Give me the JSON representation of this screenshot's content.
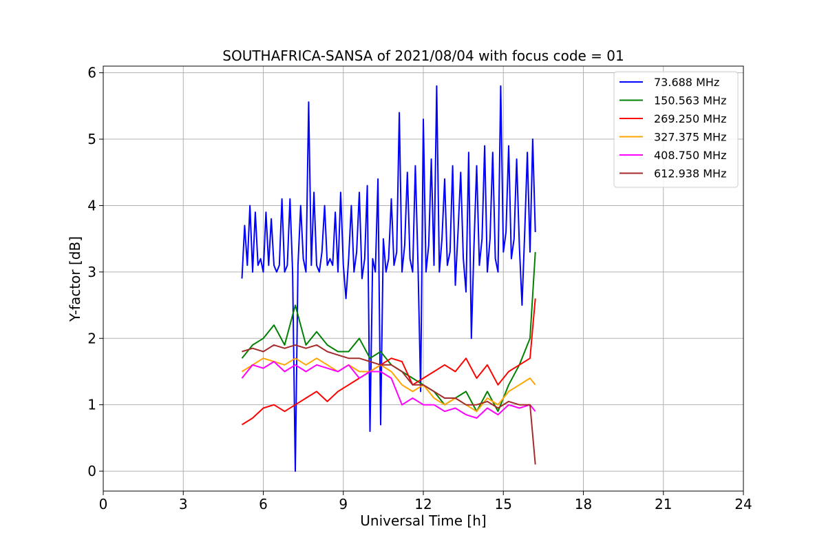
{
  "chart_data": {
    "type": "line",
    "title": "SOUTHAFRICA-SANSA of 2021/08/04 with focus code = 01",
    "xlabel": "Universal Time [h]",
    "ylabel": "Y-factor [dB]",
    "xlim": [
      0,
      24
    ],
    "ylim": [
      -0.3,
      6.1
    ],
    "xticks": [
      0,
      3,
      6,
      9,
      12,
      15,
      18,
      21,
      24
    ],
    "yticks": [
      0,
      1,
      2,
      3,
      4,
      5,
      6
    ],
    "grid": true,
    "legend_position": "top-right",
    "series": [
      {
        "name": " 73.688 MHz",
        "color": "#0000ff",
        "x": [
          5.2,
          5.3,
          5.4,
          5.5,
          5.6,
          5.7,
          5.8,
          5.9,
          6.0,
          6.1,
          6.2,
          6.3,
          6.4,
          6.5,
          6.6,
          6.7,
          6.8,
          6.9,
          7.0,
          7.1,
          7.2,
          7.3,
          7.4,
          7.5,
          7.6,
          7.7,
          7.8,
          7.9,
          8.0,
          8.1,
          8.2,
          8.3,
          8.4,
          8.5,
          8.6,
          8.7,
          8.8,
          8.9,
          9.0,
          9.1,
          9.2,
          9.3,
          9.4,
          9.5,
          9.6,
          9.7,
          9.8,
          9.9,
          10.0,
          10.1,
          10.2,
          10.3,
          10.4,
          10.5,
          10.6,
          10.7,
          10.8,
          10.9,
          11.0,
          11.1,
          11.2,
          11.3,
          11.4,
          11.5,
          11.6,
          11.7,
          11.8,
          11.9,
          12.0,
          12.1,
          12.2,
          12.3,
          12.4,
          12.5,
          12.6,
          12.7,
          12.8,
          12.9,
          13.0,
          13.1,
          13.2,
          13.3,
          13.4,
          13.5,
          13.6,
          13.7,
          13.8,
          13.9,
          14.0,
          14.1,
          14.2,
          14.3,
          14.4,
          14.5,
          14.6,
          14.7,
          14.8,
          14.9,
          15.0,
          15.1,
          15.2,
          15.3,
          15.4,
          15.5,
          15.6,
          15.7,
          15.8,
          15.9,
          16.0,
          16.1,
          16.2
        ],
        "y": [
          2.9,
          3.7,
          3.1,
          4.0,
          3.0,
          3.9,
          3.1,
          3.2,
          3.0,
          3.9,
          3.1,
          3.8,
          3.1,
          3.0,
          3.1,
          4.1,
          3.0,
          3.1,
          4.1,
          3.0,
          0.0,
          3.1,
          4.0,
          3.2,
          3.0,
          5.56,
          3.1,
          4.2,
          3.1,
          3.0,
          3.3,
          4.0,
          3.1,
          3.2,
          3.1,
          3.9,
          3.0,
          4.2,
          3.1,
          2.6,
          3.2,
          4.0,
          3.0,
          3.3,
          4.2,
          2.9,
          3.2,
          4.3,
          0.6,
          3.2,
          3.0,
          4.4,
          0.7,
          3.5,
          3.0,
          3.2,
          4.1,
          3.1,
          3.3,
          5.4,
          3.0,
          3.4,
          4.5,
          3.2,
          3.0,
          4.6,
          3.1,
          1.2,
          5.3,
          3.0,
          3.4,
          4.7,
          3.1,
          5.8,
          3.0,
          3.5,
          4.4,
          3.1,
          3.3,
          4.6,
          2.8,
          3.6,
          4.5,
          3.2,
          2.7,
          4.8,
          2.0,
          3.4,
          4.6,
          3.1,
          3.5,
          4.9,
          3.0,
          3.5,
          4.8,
          3.2,
          3.0,
          5.8,
          3.3,
          3.6,
          4.9,
          3.2,
          3.5,
          4.7,
          3.4,
          2.5,
          3.6,
          4.8,
          3.3,
          5.0,
          3.6
        ]
      },
      {
        "name": "150.563 MHz",
        "color": "#008000",
        "x": [
          5.2,
          5.6,
          6.0,
          6.4,
          6.8,
          7.2,
          7.6,
          8.0,
          8.4,
          8.8,
          9.2,
          9.6,
          10.0,
          10.4,
          10.8,
          11.2,
          11.6,
          12.0,
          12.4,
          12.8,
          13.2,
          13.6,
          14.0,
          14.4,
          14.8,
          15.2,
          15.6,
          16.0,
          16.2
        ],
        "y": [
          1.7,
          1.9,
          2.0,
          2.2,
          1.9,
          2.5,
          1.9,
          2.1,
          1.9,
          1.8,
          1.8,
          2.0,
          1.7,
          1.8,
          1.6,
          1.5,
          1.4,
          1.3,
          1.2,
          1.0,
          1.1,
          1.2,
          0.9,
          1.2,
          0.9,
          1.3,
          1.6,
          2.0,
          3.3
        ]
      },
      {
        "name": "269.250 MHz",
        "color": "#ff0000",
        "x": [
          5.2,
          5.6,
          6.0,
          6.4,
          6.8,
          7.2,
          7.6,
          8.0,
          8.4,
          8.8,
          9.2,
          9.6,
          10.0,
          10.4,
          10.8,
          11.2,
          11.6,
          12.0,
          12.4,
          12.8,
          13.2,
          13.6,
          14.0,
          14.4,
          14.8,
          15.2,
          15.6,
          16.0,
          16.2
        ],
        "y": [
          0.7,
          0.8,
          0.95,
          1.0,
          0.9,
          1.0,
          1.1,
          1.2,
          1.05,
          1.2,
          1.3,
          1.4,
          1.5,
          1.6,
          1.7,
          1.65,
          1.3,
          1.4,
          1.5,
          1.6,
          1.5,
          1.7,
          1.4,
          1.6,
          1.3,
          1.5,
          1.6,
          1.7,
          2.6
        ]
      },
      {
        "name": "327.375 MHz",
        "color": "#ffa500",
        "x": [
          5.2,
          5.6,
          6.0,
          6.4,
          6.8,
          7.2,
          7.6,
          8.0,
          8.4,
          8.8,
          9.2,
          9.6,
          10.0,
          10.4,
          10.8,
          11.2,
          11.6,
          12.0,
          12.4,
          12.8,
          13.2,
          13.6,
          14.0,
          14.4,
          14.8,
          15.2,
          15.6,
          16.0,
          16.2
        ],
        "y": [
          1.5,
          1.6,
          1.7,
          1.65,
          1.6,
          1.7,
          1.6,
          1.7,
          1.6,
          1.5,
          1.6,
          1.5,
          1.5,
          1.6,
          1.5,
          1.3,
          1.2,
          1.3,
          1.1,
          1.0,
          1.1,
          1.0,
          0.9,
          1.1,
          1.0,
          1.2,
          1.3,
          1.4,
          1.3
        ]
      },
      {
        "name": "408.750 MHz",
        "color": "#ff00ff",
        "x": [
          5.2,
          5.6,
          6.0,
          6.4,
          6.8,
          7.2,
          7.6,
          8.0,
          8.4,
          8.8,
          9.2,
          9.6,
          10.0,
          10.4,
          10.8,
          11.2,
          11.6,
          12.0,
          12.4,
          12.8,
          13.2,
          13.6,
          14.0,
          14.4,
          14.8,
          15.2,
          15.6,
          16.0,
          16.2
        ],
        "y": [
          1.4,
          1.6,
          1.55,
          1.65,
          1.5,
          1.6,
          1.5,
          1.6,
          1.55,
          1.5,
          1.6,
          1.4,
          1.5,
          1.5,
          1.4,
          1.0,
          1.1,
          1.0,
          1.0,
          0.9,
          0.95,
          0.85,
          0.8,
          0.95,
          0.85,
          1.0,
          0.95,
          1.0,
          0.9
        ]
      },
      {
        "name": "612.938 MHz",
        "color": "#a52a2a",
        "x": [
          5.2,
          5.6,
          6.0,
          6.4,
          6.8,
          7.2,
          7.6,
          8.0,
          8.4,
          8.8,
          9.2,
          9.6,
          10.0,
          10.4,
          10.8,
          11.2,
          11.6,
          12.0,
          12.4,
          12.8,
          13.2,
          13.6,
          14.0,
          14.4,
          14.8,
          15.2,
          15.6,
          16.0,
          16.2
        ],
        "y": [
          1.8,
          1.85,
          1.8,
          1.9,
          1.85,
          1.9,
          1.85,
          1.9,
          1.8,
          1.75,
          1.7,
          1.7,
          1.65,
          1.6,
          1.6,
          1.5,
          1.3,
          1.3,
          1.2,
          1.1,
          1.1,
          1.0,
          1.0,
          1.05,
          0.95,
          1.05,
          1.0,
          1.0,
          0.1
        ]
      }
    ]
  }
}
